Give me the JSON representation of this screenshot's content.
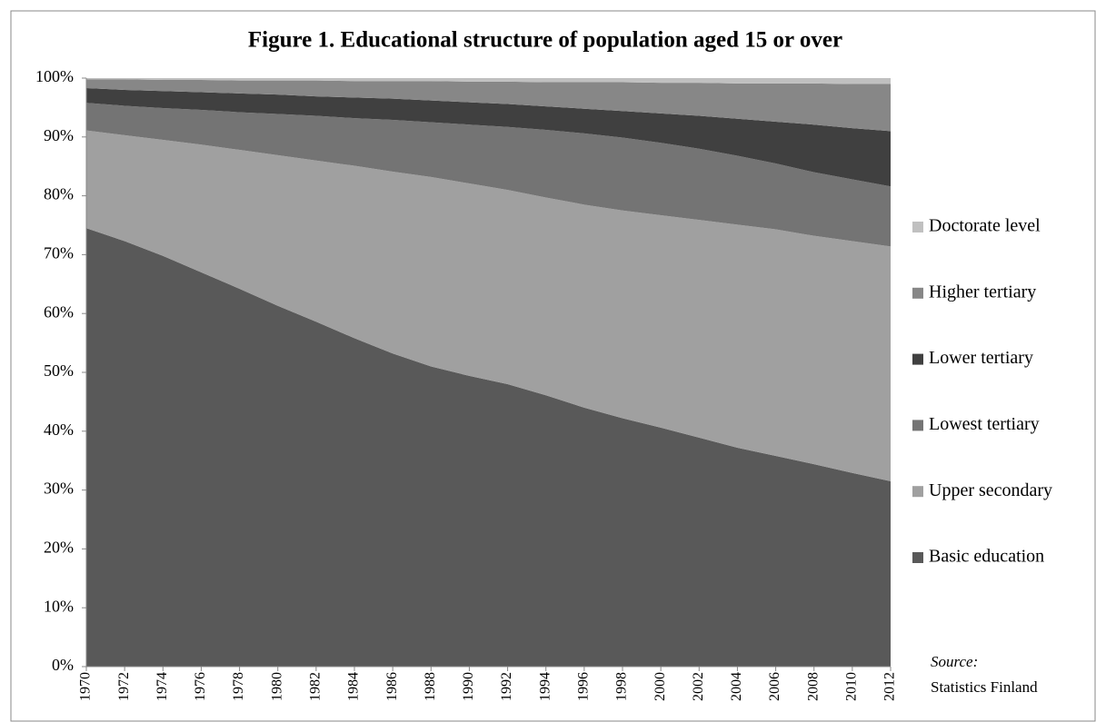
{
  "chart_data": {
    "type": "stacked_area",
    "title": "Figure 1. Educational structure of population aged 15 or over",
    "source_label": "Source:",
    "source": "Statistics Finland",
    "x": [
      1970,
      1972,
      1974,
      1976,
      1978,
      1980,
      1982,
      1984,
      1986,
      1988,
      1990,
      1992,
      1994,
      1996,
      1998,
      2000,
      2002,
      2004,
      2006,
      2008,
      2010,
      2012
    ],
    "xlim": [
      1970,
      2012
    ],
    "ylim": [
      0,
      100
    ],
    "yticks": [
      {
        "value": 0,
        "label": "0%"
      },
      {
        "value": 10,
        "label": "10%"
      },
      {
        "value": 20,
        "label": "20%"
      },
      {
        "value": 30,
        "label": "30%"
      },
      {
        "value": 40,
        "label": "40%"
      },
      {
        "value": 50,
        "label": "50%"
      },
      {
        "value": 60,
        "label": "60%"
      },
      {
        "value": 70,
        "label": "70%"
      },
      {
        "value": 80,
        "label": "80%"
      },
      {
        "value": 90,
        "label": "90%"
      },
      {
        "value": 100,
        "label": "100%"
      }
    ],
    "grid": false,
    "legend": "right",
    "series": [
      {
        "name": "Basic education",
        "color": "#595959",
        "values": [
          74.5,
          72.3,
          69.8,
          67.0,
          64.2,
          61.3,
          58.6,
          55.8,
          53.2,
          51.0,
          49.4,
          48.0,
          46.1,
          44.0,
          42.2,
          40.6,
          38.9,
          37.2,
          35.8,
          34.4,
          32.9,
          31.5
        ]
      },
      {
        "name": "Upper secondary",
        "color": "#a0a0a0",
        "values": [
          16.6,
          18.0,
          19.7,
          21.7,
          23.6,
          25.6,
          27.4,
          29.3,
          30.9,
          32.2,
          32.7,
          33.0,
          33.6,
          34.5,
          35.3,
          36.1,
          37.0,
          37.9,
          38.5,
          38.8,
          39.4,
          39.9
        ]
      },
      {
        "name": "Lowest tertiary",
        "color": "#747474",
        "values": [
          4.7,
          5.0,
          5.4,
          5.9,
          6.4,
          7.0,
          7.6,
          8.1,
          8.8,
          9.3,
          10.0,
          10.7,
          11.5,
          12.1,
          12.4,
          12.3,
          12.1,
          11.7,
          11.2,
          10.8,
          10.5,
          10.2
        ]
      },
      {
        "name": "Lower tertiary",
        "color": "#404040",
        "values": [
          2.5,
          2.7,
          2.9,
          3.0,
          3.2,
          3.3,
          3.3,
          3.5,
          3.6,
          3.7,
          3.8,
          3.9,
          4.0,
          4.2,
          4.5,
          5.0,
          5.6,
          6.3,
          7.1,
          8.1,
          8.7,
          9.4
        ]
      },
      {
        "name": "Higher tertiary",
        "color": "#878787",
        "values": [
          1.5,
          1.8,
          1.9,
          2.1,
          2.2,
          2.4,
          2.7,
          2.8,
          3.0,
          3.3,
          3.5,
          3.8,
          4.1,
          4.5,
          4.9,
          5.2,
          5.6,
          6.0,
          6.5,
          7.0,
          7.5,
          8.0
        ]
      },
      {
        "name": "Doctorate level",
        "color": "#c0c0c0",
        "values": [
          0.2,
          0.2,
          0.3,
          0.3,
          0.4,
          0.4,
          0.4,
          0.5,
          0.5,
          0.5,
          0.6,
          0.6,
          0.7,
          0.7,
          0.7,
          0.8,
          0.8,
          0.9,
          0.9,
          0.9,
          1.0,
          1.0
        ]
      }
    ]
  }
}
